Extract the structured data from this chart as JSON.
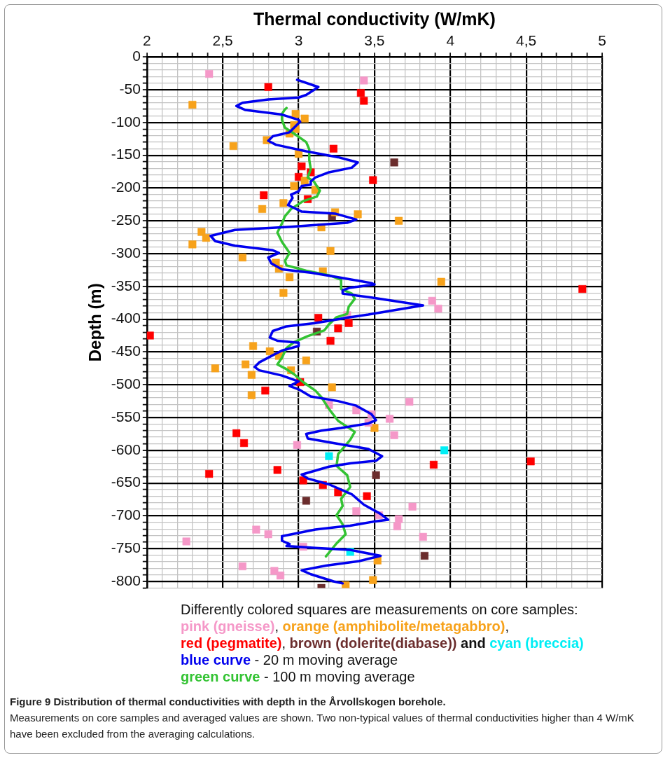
{
  "chart_data": {
    "type": "scatter",
    "xlabel": "Thermal conductivity (W/mK)",
    "ylabel": "Depth (m)",
    "xlim": [
      2,
      5
    ],
    "ylim": [
      -810,
      0
    ],
    "xticks": [
      2,
      {
        "value": 2.1,
        "label": null
      },
      {
        "value": 2.2,
        "label": null
      },
      {
        "value": 2.3,
        "label": null
      },
      {
        "value": 2.4,
        "label": null
      },
      {
        "value": 2.5,
        "label": "2,5"
      },
      {
        "value": 2.6,
        "label": null
      },
      {
        "value": 2.7,
        "label": null
      },
      {
        "value": 2.8,
        "label": null
      },
      {
        "value": 2.9,
        "label": null
      },
      3,
      {
        "value": 3.1,
        "label": null
      },
      {
        "value": 3.2,
        "label": null
      },
      {
        "value": 3.3,
        "label": null
      },
      {
        "value": 3.4,
        "label": null
      },
      {
        "value": 3.5,
        "label": "3,5"
      },
      {
        "value": 3.6,
        "label": null
      },
      {
        "value": 3.7,
        "label": null
      },
      {
        "value": 3.8,
        "label": null
      },
      {
        "value": 3.9,
        "label": null
      },
      4,
      {
        "value": 4.1,
        "label": null
      },
      {
        "value": 4.2,
        "label": null
      },
      {
        "value": 4.3,
        "label": null
      },
      {
        "value": 4.4,
        "label": null
      },
      {
        "value": 4.5,
        "label": "4,5"
      },
      {
        "value": 4.6,
        "label": null
      },
      {
        "value": 4.7,
        "label": null
      },
      {
        "value": 4.8,
        "label": null
      },
      {
        "value": 4.9,
        "label": null
      },
      5
    ],
    "yticks": [
      0,
      {
        "value": -10,
        "label": null
      },
      {
        "value": -20,
        "label": null
      },
      {
        "value": -30,
        "label": null
      },
      {
        "value": -40,
        "label": null
      },
      -50,
      {
        "value": -60,
        "label": null
      },
      {
        "value": -70,
        "label": null
      },
      {
        "value": -80,
        "label": null
      },
      {
        "value": -90,
        "label": null
      },
      -100,
      {
        "value": -110,
        "label": null
      },
      {
        "value": -120,
        "label": null
      },
      {
        "value": -130,
        "label": null
      },
      {
        "value": -140,
        "label": null
      },
      -150,
      {
        "value": -160,
        "label": null
      },
      {
        "value": -170,
        "label": null
      },
      {
        "value": -180,
        "label": null
      },
      {
        "value": -190,
        "label": null
      },
      -200,
      {
        "value": -210,
        "label": null
      },
      {
        "value": -220,
        "label": null
      },
      {
        "value": -230,
        "label": null
      },
      {
        "value": -240,
        "label": null
      },
      -250,
      {
        "value": -260,
        "label": null
      },
      {
        "value": -270,
        "label": null
      },
      {
        "value": -280,
        "label": null
      },
      {
        "value": -290,
        "label": null
      },
      -300,
      {
        "value": -310,
        "label": null
      },
      {
        "value": -320,
        "label": null
      },
      {
        "value": -330,
        "label": null
      },
      {
        "value": -340,
        "label": null
      },
      -350,
      {
        "value": -360,
        "label": null
      },
      {
        "value": -370,
        "label": null
      },
      {
        "value": -380,
        "label": null
      },
      {
        "value": -390,
        "label": null
      },
      -400,
      {
        "value": -410,
        "label": null
      },
      {
        "value": -420,
        "label": null
      },
      {
        "value": -430,
        "label": null
      },
      {
        "value": -440,
        "label": null
      },
      -450,
      {
        "value": -460,
        "label": null
      },
      {
        "value": -470,
        "label": null
      },
      {
        "value": -480,
        "label": null
      },
      {
        "value": -490,
        "label": null
      },
      -500,
      {
        "value": -510,
        "label": null
      },
      {
        "value": -520,
        "label": null
      },
      {
        "value": -530,
        "label": null
      },
      {
        "value": -540,
        "label": null
      },
      -550,
      {
        "value": -560,
        "label": null
      },
      {
        "value": -570,
        "label": null
      },
      {
        "value": -580,
        "label": null
      },
      {
        "value": -590,
        "label": null
      },
      -600,
      {
        "value": -610,
        "label": null
      },
      {
        "value": -620,
        "label": null
      },
      {
        "value": -630,
        "label": null
      },
      {
        "value": -640,
        "label": null
      },
      -650,
      {
        "value": -660,
        "label": null
      },
      {
        "value": -670,
        "label": null
      },
      {
        "value": -680,
        "label": null
      },
      {
        "value": -690,
        "label": null
      },
      -700,
      {
        "value": -710,
        "label": null
      },
      {
        "value": -720,
        "label": null
      },
      {
        "value": -730,
        "label": null
      },
      {
        "value": -740,
        "label": null
      },
      -750,
      {
        "value": -760,
        "label": null
      },
      {
        "value": -770,
        "label": null
      },
      {
        "value": -780,
        "label": null
      },
      {
        "value": -790,
        "label": null
      },
      -800,
      {
        "value": -810,
        "label": null
      }
    ],
    "grid": true,
    "legend": "bottom",
    "marker": "square",
    "series": [
      {
        "name": "pink (gneisse)",
        "color": "#f598c8",
        "x": [
          2.41,
          3.43,
          3.88,
          3.92,
          3.32,
          3.2,
          3.73,
          3.38,
          3.48,
          3.6,
          3.46,
          3.63,
          2.99,
          3.75,
          3.38,
          3.53,
          3.66,
          3.65,
          2.72,
          2.8,
          3.82,
          2.26,
          3.03,
          2.63,
          2.84,
          2.88
        ],
        "values": [
          -26,
          -36,
          -372,
          -384,
          -394,
          -531,
          -526,
          -539,
          -545,
          -552,
          -558,
          -577,
          -592,
          -686,
          -693,
          -699,
          -705,
          -716,
          -721,
          -728,
          -732,
          -739,
          -747,
          -777,
          -784,
          -791
        ]
      },
      {
        "name": "orange (amphibolite/metagabbro)",
        "color": "#f7a21b",
        "x": [
          2.3,
          2.98,
          3.04,
          2.97,
          2.98,
          2.94,
          2.79,
          2.57,
          3.0,
          3.04,
          2.97,
          3.11,
          2.9,
          2.76,
          3.24,
          3.39,
          3.66,
          3.15,
          2.36,
          2.39,
          2.3,
          3.21,
          2.63,
          2.85,
          2.87,
          3.16,
          2.94,
          2.9,
          3.94,
          2.7,
          2.81,
          2.87,
          3.05,
          2.65,
          2.45,
          2.95,
          2.69,
          3.22,
          2.69,
          3.5,
          3.52,
          3.49,
          3.31
        ],
        "values": [
          -73,
          -87,
          -94,
          -104,
          -110,
          -117,
          -127,
          -136,
          -148,
          -189,
          -197,
          -203,
          -223,
          -232,
          -237,
          -240,
          -250,
          -260,
          -267,
          -276,
          -286,
          -296,
          -306,
          -314,
          -323,
          -327,
          -336,
          -360,
          -343,
          -441,
          -449,
          -456,
          -463,
          -469,
          -475,
          -478,
          -485,
          -504,
          -516,
          -566,
          -768,
          -798,
          -806
        ]
      },
      {
        "name": "red (pegmatite)",
        "color": "#ff0000",
        "x": [
          2.8,
          3.41,
          3.43,
          3.23,
          3.02,
          3.08,
          3.0,
          3.49,
          2.77,
          3.06,
          4.87,
          3.13,
          3.33,
          3.26,
          2.02,
          3.21,
          3.01,
          2.78,
          2.59,
          2.64,
          4.53,
          3.89,
          2.86,
          2.41,
          3.03,
          3.16,
          3.26,
          3.45
        ],
        "values": [
          -46,
          -55,
          -67,
          -140,
          -167,
          -176,
          -183,
          -188,
          -211,
          -217,
          -354,
          -398,
          -406,
          -414,
          -425,
          -433,
          -496,
          -509,
          -574,
          -589,
          -617,
          -622,
          -630,
          -636,
          -646,
          -653,
          -664,
          -670
        ]
      },
      {
        "name": "brown (dolerite(diabase))",
        "color": "#6b2d2d",
        "x": [
          3.63,
          3.22,
          3.12,
          3.51,
          3.05,
          3.83,
          3.15
        ],
        "values": [
          -161,
          -243,
          -419,
          -638,
          -677,
          -761,
          -810
        ]
      },
      {
        "name": "cyan (breccia)",
        "color": "#00eef5",
        "x": [
          3.96,
          3.2,
          3.34
        ],
        "values": [
          -600,
          -609,
          -755
        ]
      },
      {
        "name": "blue curve",
        "color": "#0000ee",
        "type": "line",
        "marker": "none",
        "x": [
          2.99,
          3.13,
          3.05,
          3.0,
          2.8,
          2.63,
          2.59,
          2.65,
          2.89,
          3.0,
          3.01,
          2.94,
          2.83,
          2.8,
          2.85,
          3.05,
          3.26,
          3.39,
          3.35,
          3.2,
          3.11,
          3.08,
          3.08,
          3.02,
          3.0,
          2.95,
          2.96,
          2.93,
          3.02,
          3.24,
          3.38,
          3.32,
          2.95,
          2.58,
          2.42,
          2.45,
          2.58,
          2.83,
          2.87,
          2.8,
          2.82,
          2.89,
          3.08,
          3.26,
          3.48,
          3.5,
          3.34,
          3.29,
          3.29,
          3.48,
          3.82,
          3.46,
          3.34,
          3.11,
          2.92,
          2.83,
          2.81,
          2.86,
          3.0,
          3.0,
          2.89,
          2.83,
          2.74,
          2.71,
          2.74,
          2.89,
          3.0,
          2.94,
          3.0,
          3.08,
          3.26,
          3.38,
          3.48,
          3.51,
          3.46,
          3.28,
          3.15,
          3.05,
          3.06,
          3.23,
          3.46,
          3.55,
          3.51,
          3.34,
          3.2,
          3.08,
          3.02,
          3.06,
          3.2,
          3.35,
          3.43,
          3.54,
          3.59,
          3.49,
          3.34,
          3.26,
          3.11,
          2.89,
          2.89,
          2.94,
          2.92,
          3.11,
          3.34,
          3.54,
          3.4,
          3.18,
          3.02,
          3.08,
          3.23,
          3.29
        ],
        "values": [
          -35,
          -46,
          -58,
          -62,
          -65,
          -70,
          -75,
          -81,
          -88,
          -96,
          -99,
          -115,
          -121,
          -128,
          -134,
          -144,
          -153,
          -161,
          -169,
          -176,
          -184,
          -190,
          -195,
          -197,
          -205,
          -210,
          -215,
          -226,
          -236,
          -239,
          -248,
          -253,
          -259,
          -264,
          -273,
          -281,
          -288,
          -295,
          -299,
          -306,
          -315,
          -324,
          -329,
          -336,
          -345,
          -347,
          -352,
          -356,
          -361,
          -367,
          -379,
          -393,
          -397,
          -406,
          -411,
          -418,
          -428,
          -433,
          -436,
          -441,
          -448,
          -455,
          -466,
          -473,
          -478,
          -486,
          -495,
          -502,
          -507,
          -518,
          -525,
          -532,
          -545,
          -554,
          -559,
          -566,
          -570,
          -575,
          -582,
          -589,
          -598,
          -609,
          -616,
          -620,
          -625,
          -633,
          -637,
          -643,
          -652,
          -667,
          -683,
          -697,
          -706,
          -709,
          -715,
          -717,
          -721,
          -731,
          -738,
          -743,
          -746,
          -749,
          -752,
          -761,
          -769,
          -776,
          -783,
          -789,
          -800,
          -803
        ]
      },
      {
        "name": "green curve",
        "color": "#33c333",
        "type": "line",
        "marker": "none",
        "x": [
          2.92,
          2.91,
          2.89,
          2.89,
          2.91,
          2.97,
          3.05,
          3.07,
          3.07,
          3.08,
          3.06,
          3.1,
          3.14,
          3.12,
          3.03,
          2.95,
          2.91,
          2.89,
          2.86,
          2.89,
          2.94,
          2.91,
          2.92,
          3.05,
          3.2,
          3.28,
          3.28,
          3.35,
          3.37,
          3.33,
          3.32,
          3.25,
          3.2,
          3.17,
          3.06,
          2.97,
          2.92,
          2.89,
          2.86,
          2.91,
          2.97,
          3.03,
          3.11,
          3.15,
          3.2,
          3.26,
          3.37,
          3.34,
          3.26,
          3.25,
          3.32,
          3.34,
          3.28,
          3.29,
          3.25,
          3.29,
          3.31,
          3.25,
          3.18
        ],
        "values": [
          -78,
          -80,
          -87,
          -96,
          -108,
          -117,
          -130,
          -141,
          -157,
          -171,
          -184,
          -190,
          -204,
          -213,
          -220,
          -232,
          -243,
          -254,
          -268,
          -282,
          -299,
          -311,
          -318,
          -326,
          -333,
          -340,
          -354,
          -361,
          -369,
          -381,
          -392,
          -397,
          -408,
          -417,
          -426,
          -435,
          -444,
          -459,
          -469,
          -475,
          -484,
          -496,
          -509,
          -519,
          -537,
          -555,
          -572,
          -584,
          -606,
          -624,
          -638,
          -656,
          -674,
          -685,
          -699,
          -713,
          -728,
          -742,
          -762
        ]
      }
    ],
    "annotations": [
      "Differently colored squares are measurements on core samples:",
      ",",
      ",",
      ",",
      "and",
      "- 20 m moving average",
      "- 100 m moving average",
      "Figure 9 Distribution of thermal conductivities with depth in the Årvollskogen borehole.",
      "Measurements on core samples and averaged values are shown. Two non-typical values of thermal conductivities higher than 4 W/mK have been excluded from the averaging calculations."
    ]
  }
}
